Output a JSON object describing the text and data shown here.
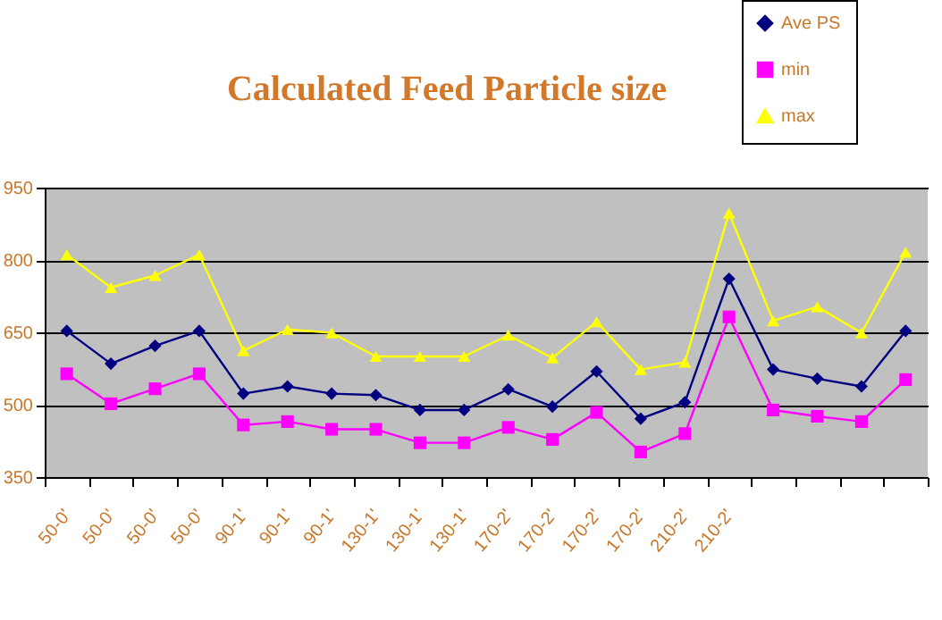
{
  "chart_data": {
    "type": "line",
    "title": "Calculated Feed Particle size",
    "categories": [
      "50-0'",
      "50-0'",
      "50-0'",
      "50-0'",
      "90-1'",
      "90-1'",
      "90-1'",
      "130-1'",
      "130-1'",
      "130-1'",
      "170-2'",
      "170-2'",
      "170-2'",
      "170-2'",
      "210-2'",
      "210-2'",
      null,
      null,
      null,
      null
    ],
    "series": [
      {
        "name": "Ave PS",
        "color": "#000080",
        "marker": "diamond",
        "values": [
          653,
          585,
          622,
          653,
          523,
          538,
          523,
          520,
          489,
          489,
          532,
          496,
          569,
          471,
          505,
          761,
          573,
          554,
          538,
          653
        ]
      },
      {
        "name": "min",
        "color": "#ff00ff",
        "marker": "square",
        "values": [
          564,
          502,
          533,
          564,
          458,
          465,
          449,
          449,
          421,
          421,
          453,
          428,
          484,
          402,
          440,
          682,
          489,
          476,
          465,
          552
        ]
      },
      {
        "name": "max",
        "color": "#ffff00",
        "marker": "triangle",
        "values": [
          811,
          743,
          768,
          811,
          612,
          656,
          649,
          600,
          600,
          600,
          644,
          597,
          672,
          573,
          588,
          897,
          674,
          703,
          649,
          816
        ]
      }
    ],
    "ylim": [
      350,
      950
    ],
    "yticks": [
      350,
      500,
      650,
      800,
      950
    ],
    "grid": "y",
    "legend": "top right"
  }
}
